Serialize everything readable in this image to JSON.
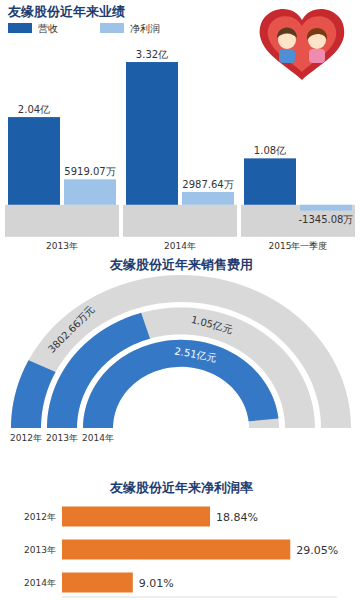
{
  "chart_data": [
    {
      "type": "bar",
      "title": "友缘股份近年来业绩",
      "categories": [
        "2013年",
        "2014年",
        "2015年一季度"
      ],
      "series": [
        {
          "name": "营收",
          "color": "#1c5ea8",
          "values": [
            20400,
            33200,
            10800
          ],
          "value_labels": [
            "2.04亿",
            "3.32亿",
            "1.08亿"
          ]
        },
        {
          "name": "净利润",
          "color": "#9dc3e8",
          "values": [
            5919.07,
            2987.64,
            -1345.08
          ],
          "value_labels": [
            "5919.07万",
            "2987.64万",
            "-1345.08万"
          ]
        }
      ],
      "ylim": [
        -4000,
        36000
      ],
      "tick_labels": "x",
      "data_labels": true,
      "legend": "upper left"
    },
    {
      "type": "radial_bar",
      "title": "友缘股份近年来销售费用",
      "categories": [
        "2012年",
        "2013年",
        "2014年"
      ],
      "values": [
        3802.66,
        10500,
        25100
      ],
      "value_labels": [
        "3802.66万元",
        "1.05亿元",
        "2.51亿元"
      ],
      "color": "#3478c6",
      "ylim": [
        0,
        26000
      ],
      "tick_labels": true,
      "data_labels": true
    },
    {
      "type": "bar",
      "orientation": "horizontal",
      "title": "友缘股份近年来净利润率",
      "categories": [
        "2012年",
        "2013年",
        "2014年"
      ],
      "values": [
        18.84,
        29.05,
        9.01
      ],
      "value_labels": [
        "18.84%",
        "29.05%",
        "9.01%"
      ],
      "color": "#e8792b",
      "xlim": [
        0,
        35
      ],
      "tick_labels": "y",
      "data_labels": true
    }
  ]
}
